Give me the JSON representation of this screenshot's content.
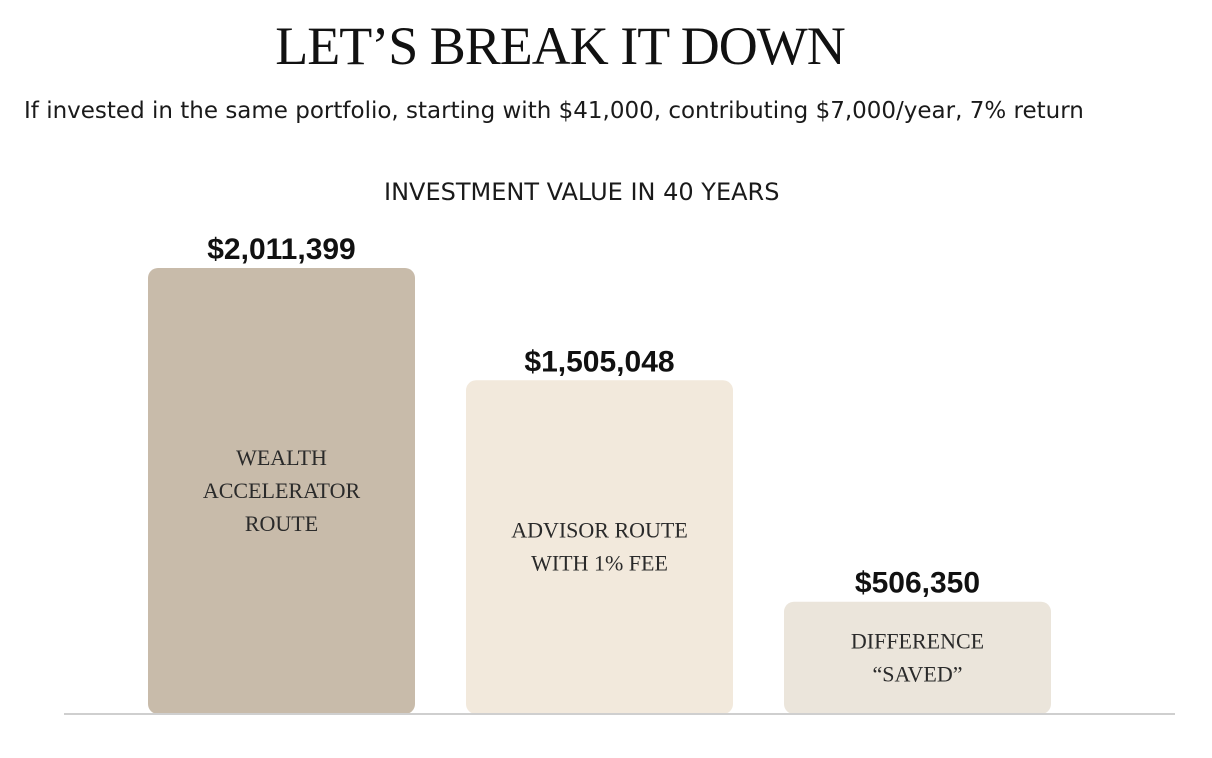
{
  "header": {
    "title": "LET’S BREAK IT DOWN",
    "subtitle": "If invested in the same portfolio, starting with $41,000, contributing $7,000/year,  7%  return"
  },
  "chart_data": {
    "type": "bar",
    "title": "INVESTMENT VALUE IN 40 YEARS",
    "categories": [
      "WEALTH ACCELERATOR ROUTE",
      "ADVISOR ROUTE WITH 1% FEE",
      "DIFFERENCE “SAVED”"
    ],
    "category_lines": [
      [
        "WEALTH",
        "ACCELERATOR",
        "ROUTE"
      ],
      [
        "ADVISOR ROUTE",
        "WITH 1% FEE"
      ],
      [
        "DIFFERENCE",
        "“SAVED”"
      ]
    ],
    "values": [
      2011399,
      1505048,
      506350
    ],
    "value_labels": [
      "$2,011,399",
      "$1,505,048",
      "$506,350"
    ],
    "colors": [
      "#c8bbaa",
      "#f2e9dc",
      "#ebe5db"
    ],
    "baseline_color": "#cfcfcf",
    "ylim": [
      0,
      2011399
    ],
    "grid": false,
    "legend": "none"
  }
}
